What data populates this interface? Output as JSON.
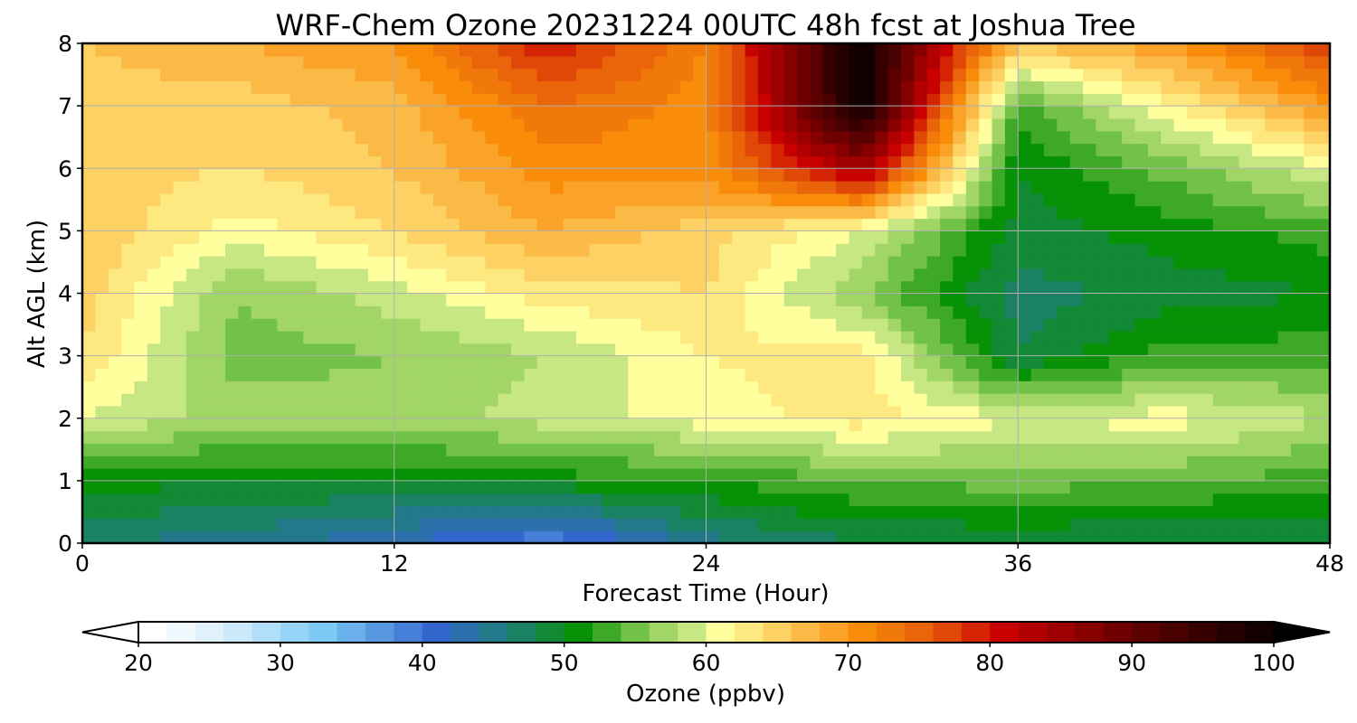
{
  "chart_data": {
    "type": "heatmap",
    "title": "WRF-Chem Ozone  20231224 00UTC 48h fcst at Joshua Tree",
    "xlabel": "Forecast Time (Hour)",
    "ylabel": "Alt AGL (km)",
    "xlim": [
      0,
      48
    ],
    "ylim": [
      0,
      8
    ],
    "xticks": [
      "0",
      "12",
      "24",
      "36",
      "48"
    ],
    "yticks": [
      "0",
      "1",
      "2",
      "3",
      "4",
      "5",
      "6",
      "7",
      "8"
    ],
    "grid": true,
    "colorbar": {
      "label": "Ozone  (ppbv)",
      "min": 20,
      "max": 100,
      "ticks": [
        "20",
        "30",
        "40",
        "50",
        "60",
        "70",
        "80",
        "90",
        "100"
      ],
      "extend": "both"
    },
    "x": [
      0,
      6,
      12,
      18,
      24,
      30,
      36,
      42,
      48
    ],
    "y": [
      0,
      1,
      2,
      3,
      4,
      5,
      6,
      7,
      8
    ],
    "z": [
      [
        46,
        45,
        42,
        38,
        45,
        48,
        48,
        48,
        48
      ],
      [
        51,
        50,
        50,
        51,
        52,
        54,
        55,
        54,
        53
      ],
      [
        60,
        57,
        57,
        59,
        61,
        63,
        60,
        61,
        58
      ],
      [
        64,
        55,
        56,
        58,
        62,
        63,
        48,
        53,
        53
      ],
      [
        65,
        56,
        59,
        63,
        64,
        56,
        47,
        49,
        50
      ],
      [
        66,
        61,
        64,
        68,
        65,
        60,
        49,
        51,
        53
      ],
      [
        65,
        64,
        66,
        71,
        71,
        85,
        50,
        55,
        60
      ],
      [
        65,
        65,
        67,
        74,
        71,
        100,
        53,
        62,
        70
      ],
      [
        66,
        68,
        70,
        80,
        72,
        100,
        66,
        70,
        78
      ]
    ]
  }
}
